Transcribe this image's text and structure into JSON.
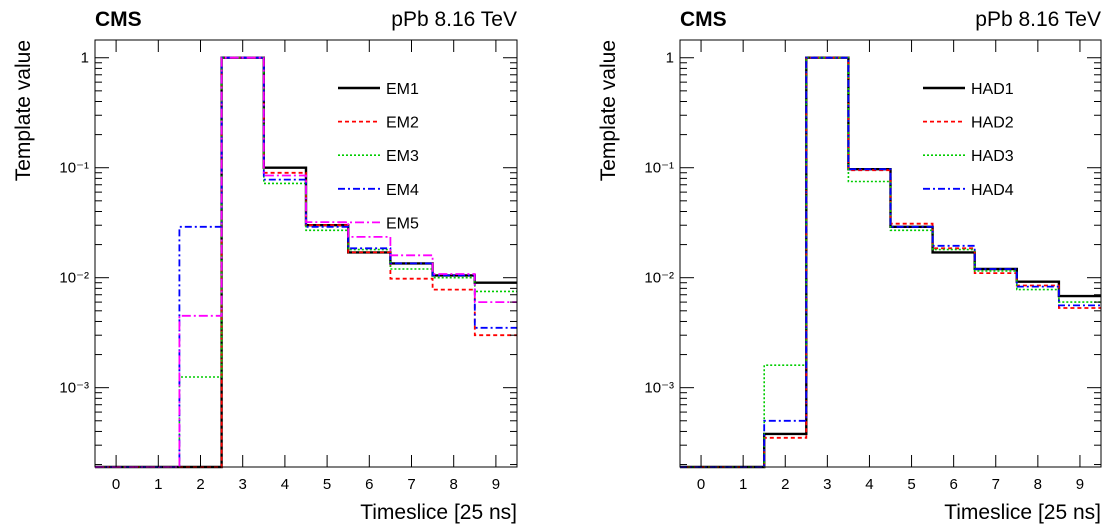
{
  "chart_data": [
    {
      "type": "line",
      "step": true,
      "experiment": "CMS",
      "energy_label": "pPb 8.16 TeV",
      "xlabel": "Timeslice [25 ns]",
      "ylabel": "Template value",
      "x_ticks": [
        "0",
        "1",
        "2",
        "3",
        "4",
        "5",
        "6",
        "7",
        "8",
        "9"
      ],
      "xlim": [
        -0.5,
        9.5
      ],
      "y_scale": "log",
      "ylim": [
        0.00019,
        1.45
      ],
      "y_ticks": [
        "10⁻³",
        "10⁻²",
        "10⁻¹",
        "1"
      ],
      "y_tick_values": [
        0.001,
        0.01,
        0.1,
        1
      ],
      "legend_position": "top-right",
      "grid": false,
      "series": [
        {
          "name": "EM1",
          "color": "#000000",
          "dash": "",
          "width": 2.4,
          "values": [
            0.00019,
            0.00019,
            0.00019,
            1.0,
            0.1,
            0.03,
            0.017,
            0.0135,
            0.0105,
            0.009
          ]
        },
        {
          "name": "EM2",
          "color": "#ff0000",
          "dash": "4,3",
          "width": 1.8,
          "values": [
            0.00019,
            0.00019,
            0.00019,
            1.0,
            0.09,
            0.03,
            0.017,
            0.0098,
            0.0078,
            0.003
          ]
        },
        {
          "name": "EM3",
          "color": "#00cc00",
          "dash": "2,2",
          "width": 1.6,
          "values": [
            0.00019,
            0.00019,
            0.00125,
            1.0,
            0.072,
            0.027,
            0.018,
            0.012,
            0.01,
            0.0075
          ]
        },
        {
          "name": "EM4",
          "color": "#0000ff",
          "dash": "7,3,2,3",
          "width": 1.8,
          "values": [
            0.00019,
            0.00019,
            0.029,
            1.0,
            0.078,
            0.029,
            0.0185,
            0.0135,
            0.0105,
            0.0035
          ]
        },
        {
          "name": "EM5",
          "color": "#ff00ff",
          "dash": "9,3,2,3",
          "width": 1.8,
          "values": [
            0.00019,
            0.00019,
            0.0045,
            1.0,
            0.085,
            0.032,
            0.0235,
            0.016,
            0.0108,
            0.006
          ]
        }
      ]
    },
    {
      "type": "line",
      "step": true,
      "experiment": "CMS",
      "energy_label": "pPb 8.16 TeV",
      "xlabel": "Timeslice [25 ns]",
      "ylabel": "Template value",
      "x_ticks": [
        "0",
        "1",
        "2",
        "3",
        "4",
        "5",
        "6",
        "7",
        "8",
        "9"
      ],
      "xlim": [
        -0.5,
        9.5
      ],
      "y_scale": "log",
      "ylim": [
        0.00019,
        1.45
      ],
      "y_ticks": [
        "10⁻³",
        "10⁻²",
        "10⁻¹",
        "1"
      ],
      "y_tick_values": [
        0.001,
        0.01,
        0.1,
        1
      ],
      "legend_position": "top-right",
      "grid": false,
      "series": [
        {
          "name": "HAD1",
          "color": "#000000",
          "dash": "",
          "width": 2.4,
          "values": [
            0.00019,
            0.00019,
            0.00038,
            1.0,
            0.097,
            0.029,
            0.017,
            0.012,
            0.0092,
            0.0068
          ]
        },
        {
          "name": "HAD2",
          "color": "#ff0000",
          "dash": "4,3",
          "width": 1.8,
          "values": [
            0.00019,
            0.00019,
            0.00035,
            1.0,
            0.095,
            0.031,
            0.0185,
            0.011,
            0.0085,
            0.0053
          ]
        },
        {
          "name": "HAD3",
          "color": "#00cc00",
          "dash": "2,2",
          "width": 1.6,
          "values": [
            0.00019,
            0.00019,
            0.0016,
            1.0,
            0.075,
            0.027,
            0.018,
            0.0115,
            0.0078,
            0.006
          ]
        },
        {
          "name": "HAD4",
          "color": "#0000ff",
          "dash": "7,3,2,3",
          "width": 1.8,
          "values": [
            0.00019,
            0.00019,
            0.0005,
            1.0,
            0.097,
            0.029,
            0.0195,
            0.012,
            0.0083,
            0.0056
          ]
        }
      ]
    }
  ]
}
